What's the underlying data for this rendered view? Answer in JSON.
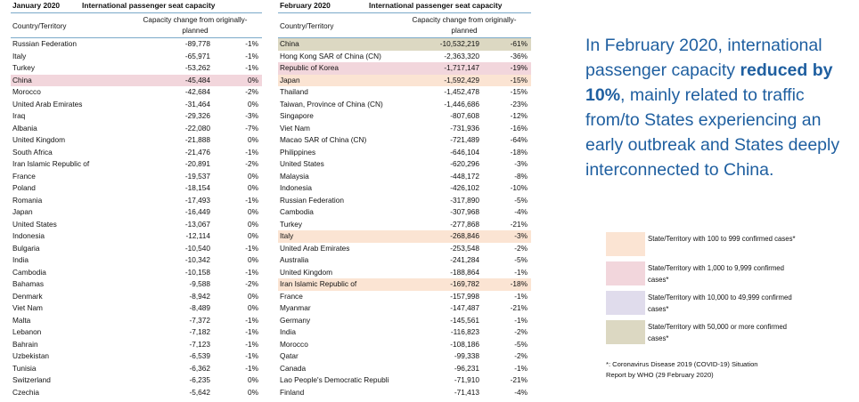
{
  "january": {
    "month": "January 2020",
    "caption": "International passenger seat capacity",
    "col_country": "Country/Territory",
    "col_capacity_line1": "Capacity change from originally-",
    "col_capacity_line2": "planned",
    "rows": [
      {
        "name": "Russian Federation",
        "value": "-89,778",
        "pct": "-1%",
        "tier": ""
      },
      {
        "name": "Italy",
        "value": "-65,971",
        "pct": "-1%",
        "tier": ""
      },
      {
        "name": "Turkey",
        "value": "-53,262",
        "pct": "-1%",
        "tier": ""
      },
      {
        "name": "China",
        "value": "-45,484",
        "pct": "0%",
        "tier": "1000"
      },
      {
        "name": "Morocco",
        "value": "-42,684",
        "pct": "-2%",
        "tier": ""
      },
      {
        "name": "United Arab Emirates",
        "value": "-31,464",
        "pct": "0%",
        "tier": ""
      },
      {
        "name": "Iraq",
        "value": "-29,326",
        "pct": "-3%",
        "tier": ""
      },
      {
        "name": "Albania",
        "value": "-22,080",
        "pct": "-7%",
        "tier": ""
      },
      {
        "name": "United Kingdom",
        "value": "-21,888",
        "pct": "0%",
        "tier": ""
      },
      {
        "name": "South Africa",
        "value": "-21,476",
        "pct": "-1%",
        "tier": ""
      },
      {
        "name": "Iran Islamic Republic of",
        "value": "-20,891",
        "pct": "-2%",
        "tier": ""
      },
      {
        "name": "France",
        "value": "-19,537",
        "pct": "0%",
        "tier": ""
      },
      {
        "name": "Poland",
        "value": "-18,154",
        "pct": "0%",
        "tier": ""
      },
      {
        "name": "Romania",
        "value": "-17,493",
        "pct": "-1%",
        "tier": ""
      },
      {
        "name": "Japan",
        "value": "-16,449",
        "pct": "0%",
        "tier": ""
      },
      {
        "name": "United States",
        "value": "-13,067",
        "pct": "0%",
        "tier": ""
      },
      {
        "name": "Indonesia",
        "value": "-12,114",
        "pct": "0%",
        "tier": ""
      },
      {
        "name": "Bulgaria",
        "value": "-10,540",
        "pct": "-1%",
        "tier": ""
      },
      {
        "name": "India",
        "value": "-10,342",
        "pct": "0%",
        "tier": ""
      },
      {
        "name": "Cambodia",
        "value": "-10,158",
        "pct": "-1%",
        "tier": ""
      },
      {
        "name": "Bahamas",
        "value": "-9,588",
        "pct": "-2%",
        "tier": ""
      },
      {
        "name": "Denmark",
        "value": "-8,942",
        "pct": "0%",
        "tier": ""
      },
      {
        "name": "Viet Nam",
        "value": "-8,489",
        "pct": "0%",
        "tier": ""
      },
      {
        "name": "Malta",
        "value": "-7,372",
        "pct": "-1%",
        "tier": ""
      },
      {
        "name": "Lebanon",
        "value": "-7,182",
        "pct": "-1%",
        "tier": ""
      },
      {
        "name": "Bahrain",
        "value": "-7,123",
        "pct": "-1%",
        "tier": ""
      },
      {
        "name": "Uzbekistan",
        "value": "-6,539",
        "pct": "-1%",
        "tier": ""
      },
      {
        "name": "Tunisia",
        "value": "-6,362",
        "pct": "-1%",
        "tier": ""
      },
      {
        "name": "Switzerland",
        "value": "-6,235",
        "pct": "0%",
        "tier": ""
      },
      {
        "name": "Czechia",
        "value": "-5,642",
        "pct": "0%",
        "tier": ""
      }
    ]
  },
  "february": {
    "month": "February 2020",
    "caption": "International passenger seat capacity",
    "col_country": "Country/Territory",
    "col_capacity_line1": "Capacity change from originally-",
    "col_capacity_line2": "planned",
    "rows": [
      {
        "name": "China",
        "value": "-10,532,219",
        "pct": "-61%",
        "tier": "50000"
      },
      {
        "name": "Hong Kong SAR of China (CN)",
        "value": "-2,363,320",
        "pct": "-36%",
        "tier": ""
      },
      {
        "name": "Republic of Korea",
        "value": "-1,717,147",
        "pct": "-19%",
        "tier": "1000"
      },
      {
        "name": "Japan",
        "value": "-1,592,429",
        "pct": "-15%",
        "tier": "100"
      },
      {
        "name": "Thailand",
        "value": "-1,452,478",
        "pct": "-15%",
        "tier": ""
      },
      {
        "name": "Taiwan, Province of China (CN)",
        "value": "-1,446,686",
        "pct": "-23%",
        "tier": ""
      },
      {
        "name": "Singapore",
        "value": "-807,608",
        "pct": "-12%",
        "tier": ""
      },
      {
        "name": "Viet Nam",
        "value": "-731,936",
        "pct": "-16%",
        "tier": ""
      },
      {
        "name": "Macao SAR of China (CN)",
        "value": "-721,489",
        "pct": "-64%",
        "tier": ""
      },
      {
        "name": "Philippines",
        "value": "-646,104",
        "pct": "-18%",
        "tier": ""
      },
      {
        "name": "United States",
        "value": "-620,296",
        "pct": "-3%",
        "tier": ""
      },
      {
        "name": "Malaysia",
        "value": "-448,172",
        "pct": "-8%",
        "tier": ""
      },
      {
        "name": "Indonesia",
        "value": "-426,102",
        "pct": "-10%",
        "tier": ""
      },
      {
        "name": "Russian Federation",
        "value": "-317,890",
        "pct": "-5%",
        "tier": ""
      },
      {
        "name": "Cambodia",
        "value": "-307,968",
        "pct": "-4%",
        "tier": ""
      },
      {
        "name": "Turkey",
        "value": "-277,868",
        "pct": "-21%",
        "tier": ""
      },
      {
        "name": "Italy",
        "value": "-268,846",
        "pct": "-3%",
        "tier": "100"
      },
      {
        "name": "United Arab Emirates",
        "value": "-253,548",
        "pct": "-2%",
        "tier": ""
      },
      {
        "name": "Australia",
        "value": "-241,284",
        "pct": "-5%",
        "tier": ""
      },
      {
        "name": "United Kingdom",
        "value": "-188,864",
        "pct": "-1%",
        "tier": ""
      },
      {
        "name": "Iran Islamic Republic of",
        "value": "-169,782",
        "pct": "-18%",
        "tier": "100"
      },
      {
        "name": "France",
        "value": "-157,998",
        "pct": "-1%",
        "tier": ""
      },
      {
        "name": "Myanmar",
        "value": "-147,487",
        "pct": "-21%",
        "tier": ""
      },
      {
        "name": "Germany",
        "value": "-145,561",
        "pct": "-1%",
        "tier": ""
      },
      {
        "name": "India",
        "value": "-116,823",
        "pct": "-2%",
        "tier": ""
      },
      {
        "name": "Morocco",
        "value": "-108,186",
        "pct": "-5%",
        "tier": ""
      },
      {
        "name": "Qatar",
        "value": "-99,338",
        "pct": "-2%",
        "tier": ""
      },
      {
        "name": "Canada",
        "value": "-96,231",
        "pct": "-1%",
        "tier": ""
      },
      {
        "name": "Lao People's Democratic Republi",
        "value": "-71,910",
        "pct": "-21%",
        "tier": ""
      },
      {
        "name": "Finland",
        "value": "-71,413",
        "pct": "-4%",
        "tier": ""
      }
    ]
  },
  "summary": {
    "part1": "In February 2020, international passenger capacity ",
    "bold": "reduced by 10%",
    "part2": ", mainly related to traffic from/to States experiencing an early outbreak and States deeply interconnected to China."
  },
  "legend": [
    {
      "label": "State/Territory with 100 to 999 confirmed cases*",
      "color": "#fbe4d3"
    },
    {
      "label": "State/Territory with 1,000 to 9,999 confirmed cases*",
      "color": "#f2d6dc"
    },
    {
      "label": "State/Territory with 10,000 to 49,999 confirmed cases*",
      "color": "#e0dcec"
    },
    {
      "label": "State/Territory with 50,000 or more confirmed cases*",
      "color": "#dcd8c2"
    }
  ],
  "footnote": {
    "line1": "*: Coronavirus Disease 2019 (COVID-19) Situation",
    "line2": "Report by WHO (29 February 2020)"
  }
}
